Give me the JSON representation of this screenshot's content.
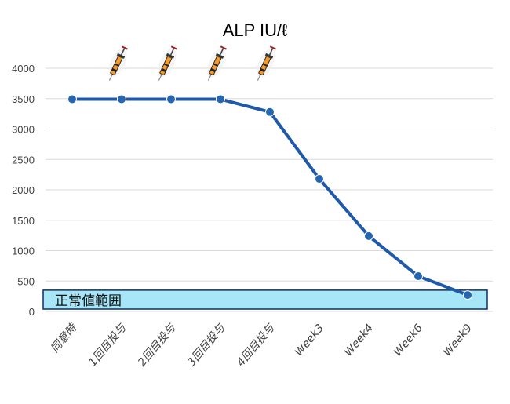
{
  "chart_data": {
    "type": "line",
    "title": "ALP IU/ℓ",
    "xlabel": "",
    "ylabel": "",
    "ylim": [
      0,
      4000
    ],
    "yticks": [
      0,
      500,
      1000,
      1500,
      2000,
      2500,
      3000,
      3500,
      4000
    ],
    "categories": [
      "同意時",
      "1回目投与",
      "2回目投与",
      "3回目投与",
      "4回目投与",
      "Week3",
      "Week4",
      "Week6",
      "Week9"
    ],
    "series": [
      {
        "values": [
          3490,
          3490,
          3490,
          3490,
          3280,
          2180,
          1240,
          580,
          270
        ]
      }
    ],
    "normal_range": {
      "label": "正常値範囲",
      "from": 0,
      "to": 350
    },
    "injection_markers": {
      "icon": "syringe-icon",
      "after_categories": [
        "1回目投与",
        "2回目投与",
        "3回目投与",
        "4回目投与"
      ]
    },
    "grid": true,
    "legend": "none",
    "colors": {
      "line": "#1f5aa8",
      "marker": "#2466b0",
      "band_fill": "#a6e6f7",
      "band_stroke": "#0f2f66",
      "grid": "#d9d9d9"
    }
  }
}
